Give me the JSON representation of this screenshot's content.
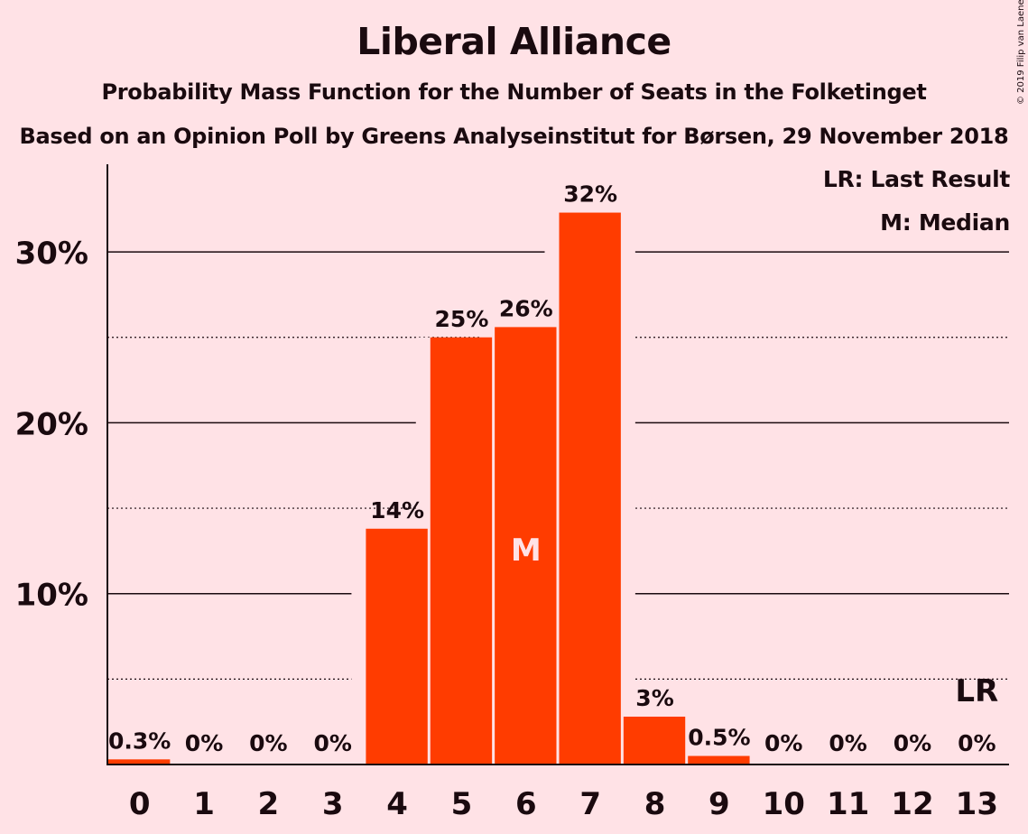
{
  "title": "Liberal Alliance",
  "subtitle_1": "Probability Mass Function for the Number of Seats in the Folketinget",
  "subtitle_2": "Based on an Opinion Poll by Greens Analyseinstitut for Børsen, 29 November 2018",
  "copyright": "© 2019 Filip van Laenen",
  "legend": {
    "last_result": "LR: Last Result",
    "median": "M: Median"
  },
  "colors": {
    "background": "#FFE2E6",
    "bar": "#FF3C00",
    "text": "#1A0A0F",
    "median_label": "#FFE2E6"
  },
  "chart_data": {
    "type": "bar",
    "categories": [
      "0",
      "1",
      "2",
      "3",
      "4",
      "5",
      "6",
      "7",
      "8",
      "9",
      "10",
      "11",
      "12",
      "13"
    ],
    "values": [
      0.3,
      0,
      0,
      0,
      13.8,
      25.0,
      25.6,
      32.3,
      2.8,
      0.5,
      0,
      0,
      0,
      0
    ],
    "data_labels": [
      "0.3%",
      "0%",
      "0%",
      "0%",
      "14%",
      "25%",
      "26%",
      "32%",
      "3%",
      "0.5%",
      "0%",
      "0%",
      "0%",
      "0%"
    ],
    "ylim": [
      0,
      35
    ],
    "y_ticks": [
      {
        "value": 10,
        "label": "10%"
      },
      {
        "value": 20,
        "label": "20%"
      },
      {
        "value": 30,
        "label": "30%"
      }
    ],
    "y_minor_gridlines": [
      5,
      15,
      25
    ],
    "median_category": "6",
    "median_marker": "M",
    "last_result_category": "13",
    "last_result_marker": "LR",
    "xlabel": "",
    "ylabel": ""
  }
}
